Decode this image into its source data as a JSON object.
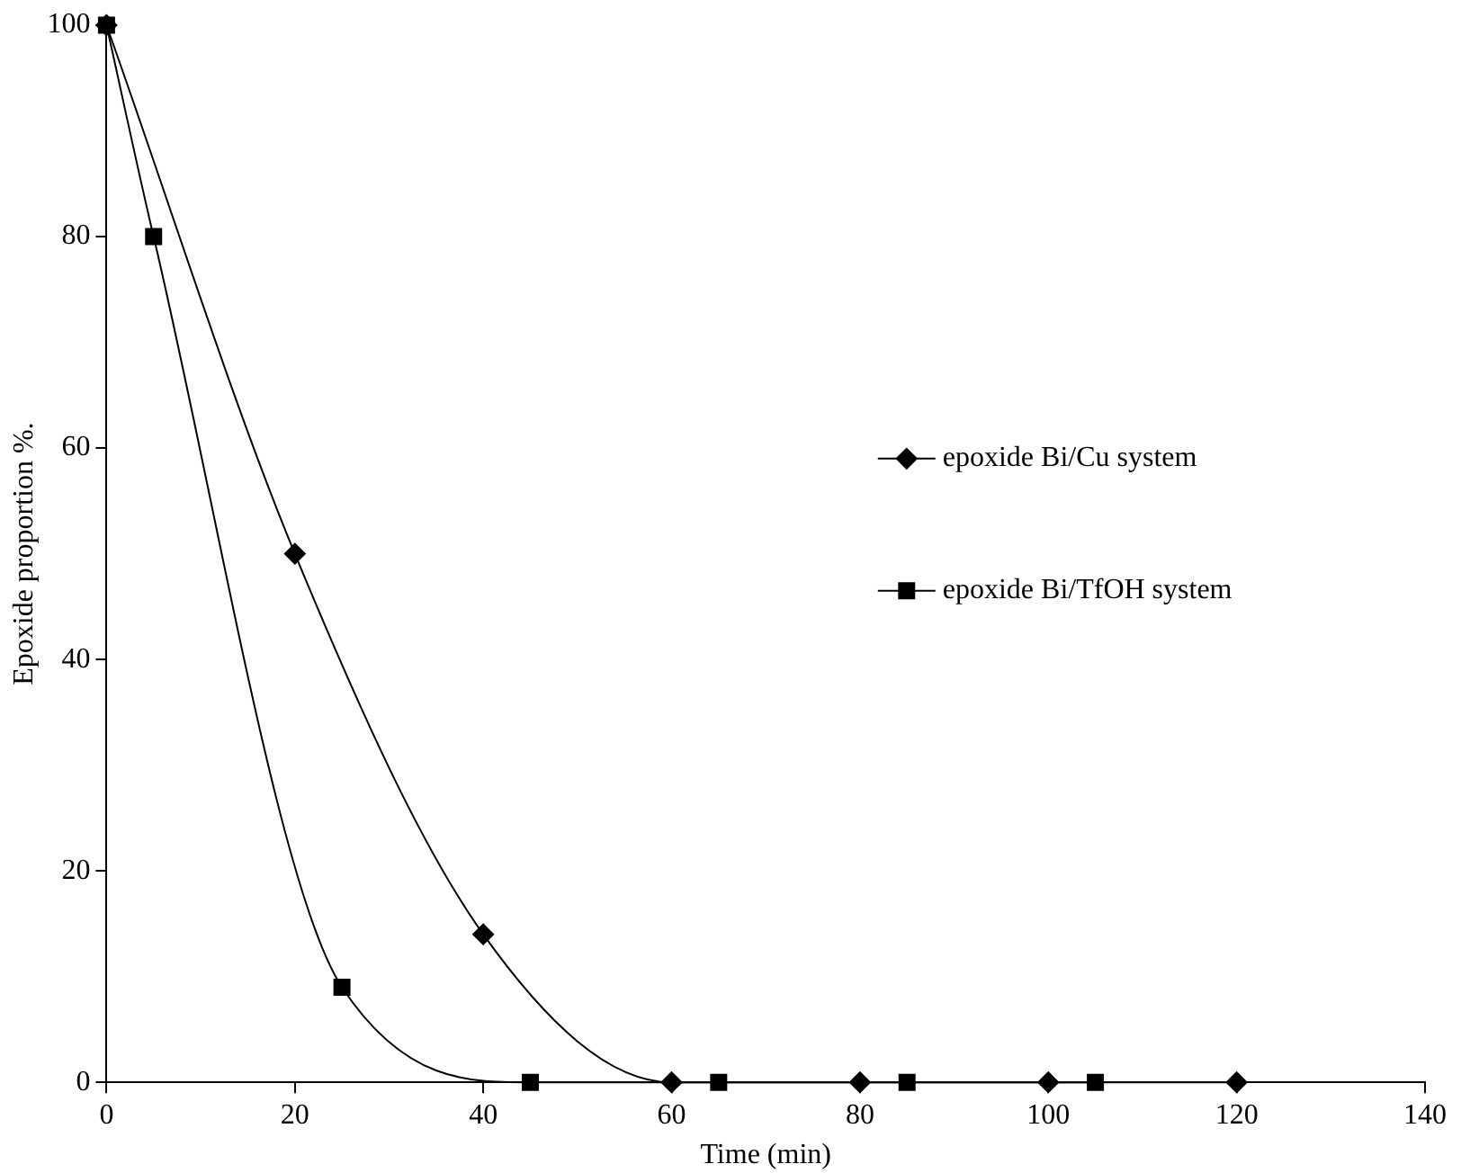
{
  "chart_data": {
    "type": "line",
    "xlabel": "Time (min)",
    "ylabel": "Epoxide proportion %.",
    "xlim": [
      0,
      140
    ],
    "xticks": [
      0,
      20,
      40,
      60,
      80,
      100,
      120,
      140
    ],
    "ylim": [
      0,
      100
    ],
    "yticks": [
      0,
      20,
      40,
      60,
      80,
      100
    ],
    "grid": false,
    "legend": "right",
    "line_style": "solid",
    "series": [
      {
        "name": "epoxide Bi/Cu system",
        "color": "#000000",
        "marker": "diamond",
        "x": [
          0,
          20,
          40,
          60,
          80,
          100,
          120
        ],
        "values": [
          100,
          50,
          14,
          0,
          0,
          0,
          0
        ]
      },
      {
        "name": "epoxide Bi/TfOH system",
        "color": "#000000",
        "marker": "square",
        "x": [
          0,
          5,
          25,
          45,
          65,
          85,
          105
        ],
        "values": [
          100,
          80,
          9,
          0,
          0,
          0,
          0
        ]
      }
    ]
  }
}
